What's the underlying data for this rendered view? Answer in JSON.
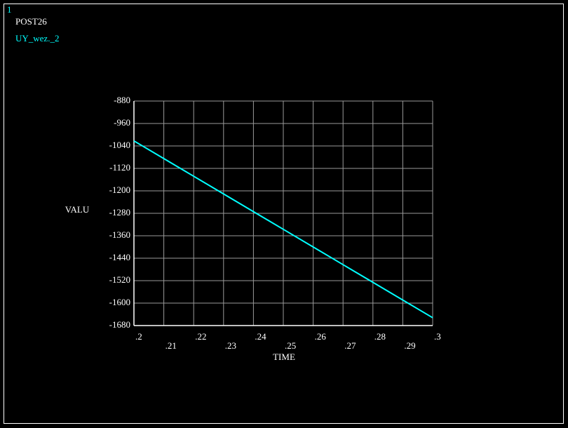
{
  "window_number": "1",
  "program": "POST26",
  "chart_data": {
    "type": "line",
    "x_label": "TIME",
    "y_label": "VALU",
    "x": [
      0.2,
      0.21,
      0.22,
      0.23,
      0.24,
      0.25,
      0.26,
      0.27,
      0.28,
      0.29,
      0.3
    ],
    "series": [
      {
        "name": "UY_wez._2",
        "color": "#00ffff",
        "values": [
          -1022,
          -1085,
          -1148,
          -1211,
          -1274,
          -1337,
          -1400,
          -1463,
          -1526,
          -1589,
          -1652
        ]
      }
    ],
    "xlim": [
      0.2,
      0.3
    ],
    "xticks": [
      {
        "value": 0.2,
        "label": ".2"
      },
      {
        "value": 0.21,
        "label": ".21"
      },
      {
        "value": 0.22,
        "label": ".22"
      },
      {
        "value": 0.23,
        "label": ".23"
      },
      {
        "value": 0.24,
        "label": ".24"
      },
      {
        "value": 0.25,
        "label": ".25"
      },
      {
        "value": 0.26,
        "label": ".26"
      },
      {
        "value": 0.27,
        "label": ".27"
      },
      {
        "value": 0.28,
        "label": ".28"
      },
      {
        "value": 0.29,
        "label": ".29"
      },
      {
        "value": 0.3,
        "label": ".3"
      }
    ],
    "ylim": [
      -1680,
      -880
    ],
    "yticks": [
      -880,
      -960,
      -1040,
      -1120,
      -1200,
      -1280,
      -1360,
      -1440,
      -1520,
      -1600,
      -1680
    ],
    "grid": true
  }
}
